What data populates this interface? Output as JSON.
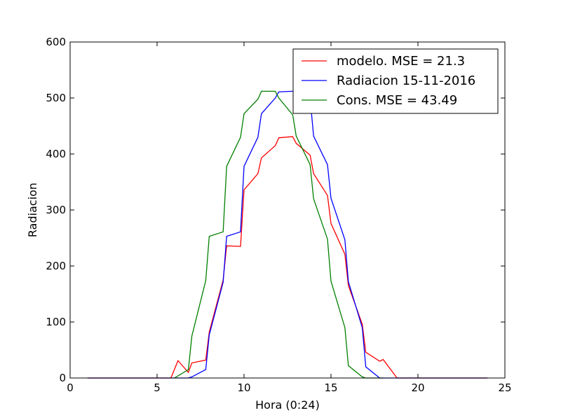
{
  "chart_data": {
    "type": "line",
    "title": "",
    "xlabel": "Hora (0:24)",
    "ylabel": "Radiacion",
    "xlim": [
      0,
      25
    ],
    "ylim": [
      0,
      600
    ],
    "xticks": [
      0,
      5,
      10,
      15,
      20,
      25
    ],
    "yticks": [
      0,
      100,
      200,
      300,
      400,
      500,
      600
    ],
    "grid": false,
    "legend_position": "top-right",
    "series": [
      {
        "name": "modelo. MSE = 21.3",
        "color": "#ff0000",
        "x": [
          1,
          5.8,
          6.2,
          6.8,
          7.0,
          7.8,
          8.0,
          8.8,
          9.0,
          9.8,
          10.0,
          10.8,
          11.0,
          11.8,
          12.0,
          12.8,
          13.0,
          13.8,
          14.0,
          14.8,
          15.0,
          15.8,
          16.0,
          16.8,
          17.0,
          17.8,
          18.0,
          18.8,
          20,
          24
        ],
        "y": [
          0,
          0,
          31,
          10,
          27,
          32,
          82,
          175,
          236,
          235,
          336,
          365,
          393,
          415,
          429,
          431,
          419,
          398,
          365,
          326,
          276,
          221,
          165,
          96,
          46,
          30,
          33,
          0,
          0,
          0
        ]
      },
      {
        "name": "Radiacion 15-11-2016",
        "color": "#0000ff",
        "x": [
          1,
          6.8,
          7.0,
          7.8,
          8.0,
          8.8,
          9.0,
          9.8,
          10.0,
          10.8,
          11.0,
          11.8,
          12.0,
          12.8,
          13.0,
          13.8,
          14.0,
          14.8,
          15.0,
          15.8,
          16.0,
          16.8,
          17.0,
          17.8,
          18.0,
          20,
          24
        ],
        "y": [
          0,
          0,
          2,
          15,
          77,
          171,
          253,
          261,
          378,
          430,
          472,
          500,
          511,
          512,
          512,
          500,
          432,
          381,
          321,
          247,
          172,
          90,
          20,
          0,
          0,
          0,
          0
        ]
      },
      {
        "name": "Cons. MSE = 43.49",
        "color": "#008000",
        "x": [
          6,
          6.8,
          7.0,
          7.8,
          8.0,
          8.8,
          9.0,
          9.8,
          10.0,
          10.8,
          11.0,
          11.8,
          12.0,
          12.8,
          13.0,
          13.8,
          14.0,
          14.8,
          15.0,
          15.8,
          16.0,
          16.8,
          17.0,
          18
        ],
        "y": [
          0,
          15,
          75,
          174,
          253,
          261,
          378,
          430,
          472,
          498,
          512,
          512,
          500,
          470,
          432,
          381,
          320,
          248,
          173,
          90,
          22,
          2,
          0,
          0
        ]
      }
    ]
  }
}
